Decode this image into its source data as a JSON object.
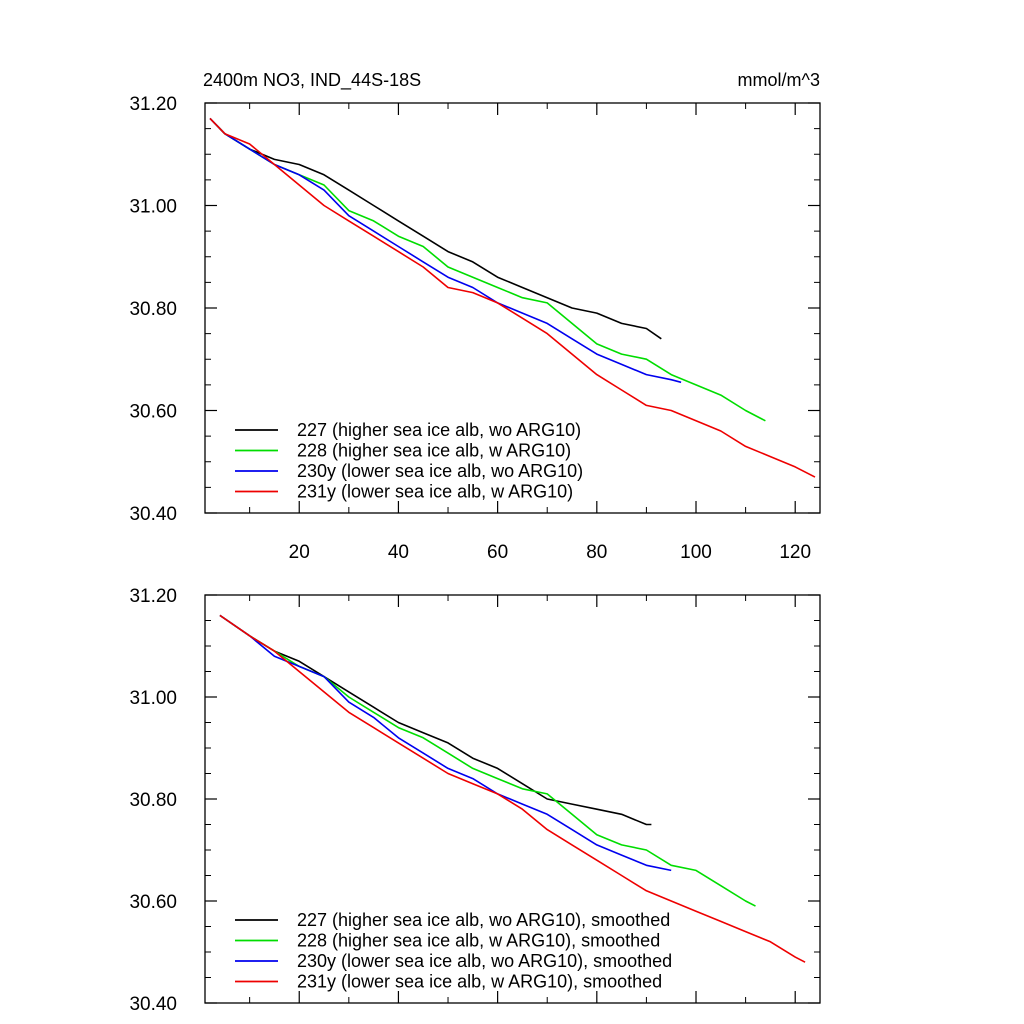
{
  "chart_data": [
    {
      "type": "line",
      "title": "2400m NO3, IND_44S-18S",
      "units": "mmol/m^3",
      "xlim": [
        1,
        125
      ],
      "ylim": [
        30.4,
        31.2
      ],
      "xticks": [
        20,
        40,
        60,
        80,
        100,
        120
      ],
      "yticks": [
        30.4,
        30.6,
        30.8,
        31.0,
        31.2
      ],
      "ytick_labels": [
        "30.40",
        "30.60",
        "30.80",
        "31.00",
        "31.20"
      ],
      "legend_position": "bottom-left",
      "series": [
        {
          "name": "227 (higher sea ice alb, wo ARG10)",
          "color": "#000000",
          "x": [
            2,
            5,
            10,
            15,
            20,
            25,
            30,
            35,
            40,
            45,
            50,
            55,
            60,
            65,
            70,
            75,
            80,
            85,
            90,
            93
          ],
          "y": [
            31.17,
            31.14,
            31.11,
            31.09,
            31.08,
            31.06,
            31.03,
            31.0,
            30.97,
            30.94,
            30.91,
            30.89,
            30.86,
            30.84,
            30.82,
            30.8,
            30.79,
            30.77,
            30.76,
            30.74
          ]
        },
        {
          "name": "228 (higher sea ice alb, w ARG10)",
          "color": "#00dd00",
          "x": [
            2,
            5,
            10,
            15,
            20,
            25,
            30,
            35,
            40,
            45,
            50,
            55,
            60,
            65,
            70,
            75,
            80,
            85,
            90,
            95,
            100,
            105,
            110,
            114
          ],
          "y": [
            31.17,
            31.14,
            31.11,
            31.08,
            31.06,
            31.04,
            30.99,
            30.97,
            30.94,
            30.92,
            30.88,
            30.86,
            30.84,
            30.82,
            30.81,
            30.77,
            30.73,
            30.71,
            30.7,
            30.67,
            30.65,
            30.63,
            30.6,
            30.58
          ]
        },
        {
          "name": "230y (lower sea ice alb, wo ARG10)",
          "color": "#0000ee",
          "x": [
            2,
            5,
            10,
            15,
            20,
            25,
            30,
            35,
            40,
            45,
            50,
            55,
            60,
            65,
            70,
            75,
            80,
            85,
            90,
            95,
            97
          ],
          "y": [
            31.17,
            31.14,
            31.11,
            31.08,
            31.06,
            31.03,
            30.98,
            30.95,
            30.92,
            30.89,
            30.86,
            30.84,
            30.81,
            30.79,
            30.77,
            30.74,
            30.71,
            30.69,
            30.67,
            30.66,
            30.655
          ]
        },
        {
          "name": "231y (lower sea ice alb, w ARG10)",
          "color": "#ee0000",
          "x": [
            2,
            5,
            10,
            15,
            20,
            25,
            30,
            35,
            40,
            45,
            50,
            55,
            60,
            65,
            70,
            75,
            80,
            85,
            90,
            95,
            100,
            105,
            110,
            115,
            120,
            124
          ],
          "y": [
            31.17,
            31.14,
            31.12,
            31.08,
            31.04,
            31.0,
            30.97,
            30.94,
            30.91,
            30.88,
            30.84,
            30.83,
            30.81,
            30.78,
            30.75,
            30.71,
            30.67,
            30.64,
            30.61,
            30.6,
            30.58,
            30.56,
            30.53,
            30.51,
            30.49,
            30.47
          ]
        }
      ]
    },
    {
      "type": "line",
      "xlim": [
        1,
        125
      ],
      "ylim": [
        30.4,
        31.2
      ],
      "xticks": [
        20,
        40,
        60,
        80,
        100,
        120
      ],
      "yticks": [
        30.4,
        30.6,
        30.8,
        31.0,
        31.2
      ],
      "ytick_labels": [
        "30.40",
        "30.60",
        "30.80",
        "31.00",
        "31.20"
      ],
      "legend_position": "bottom-left",
      "series": [
        {
          "name": "227 (higher sea ice alb, wo ARG10), smoothed",
          "color": "#000000",
          "x": [
            4,
            10,
            15,
            20,
            25,
            30,
            35,
            40,
            45,
            50,
            55,
            60,
            65,
            70,
            75,
            80,
            85,
            90,
            91
          ],
          "y": [
            31.16,
            31.12,
            31.09,
            31.07,
            31.04,
            31.01,
            30.98,
            30.95,
            30.93,
            30.91,
            30.88,
            30.86,
            30.83,
            30.8,
            30.79,
            30.78,
            30.77,
            30.75,
            30.75
          ]
        },
        {
          "name": "228 (higher sea ice alb, w ARG10), smoothed",
          "color": "#00dd00",
          "x": [
            4,
            10,
            15,
            20,
            25,
            30,
            35,
            40,
            45,
            50,
            55,
            60,
            65,
            70,
            75,
            80,
            85,
            90,
            95,
            100,
            105,
            110,
            112
          ],
          "y": [
            31.16,
            31.12,
            31.09,
            31.06,
            31.04,
            31.0,
            30.97,
            30.94,
            30.92,
            30.89,
            30.86,
            30.84,
            30.82,
            30.81,
            30.77,
            30.73,
            30.71,
            30.7,
            30.67,
            30.66,
            30.63,
            30.6,
            30.59
          ]
        },
        {
          "name": "230y (lower sea ice alb, wo ARG10), smoothed",
          "color": "#0000ee",
          "x": [
            4,
            10,
            15,
            20,
            25,
            30,
            35,
            40,
            45,
            50,
            55,
            60,
            65,
            70,
            75,
            80,
            85,
            90,
            95
          ],
          "y": [
            31.16,
            31.12,
            31.08,
            31.06,
            31.04,
            30.99,
            30.96,
            30.92,
            30.89,
            30.86,
            30.84,
            30.81,
            30.79,
            30.77,
            30.74,
            30.71,
            30.69,
            30.67,
            30.66
          ]
        },
        {
          "name": "231y (lower sea ice alb, w ARG10), smoothed",
          "color": "#ee0000",
          "x": [
            4,
            10,
            15,
            20,
            25,
            30,
            35,
            40,
            45,
            50,
            55,
            60,
            65,
            70,
            75,
            80,
            85,
            90,
            95,
            100,
            105,
            110,
            115,
            120,
            122
          ],
          "y": [
            31.16,
            31.12,
            31.09,
            31.05,
            31.01,
            30.97,
            30.94,
            30.91,
            30.88,
            30.85,
            30.83,
            30.81,
            30.78,
            30.74,
            30.71,
            30.68,
            30.65,
            30.62,
            30.6,
            30.58,
            30.56,
            30.54,
            30.52,
            30.49,
            30.48
          ]
        }
      ]
    }
  ]
}
